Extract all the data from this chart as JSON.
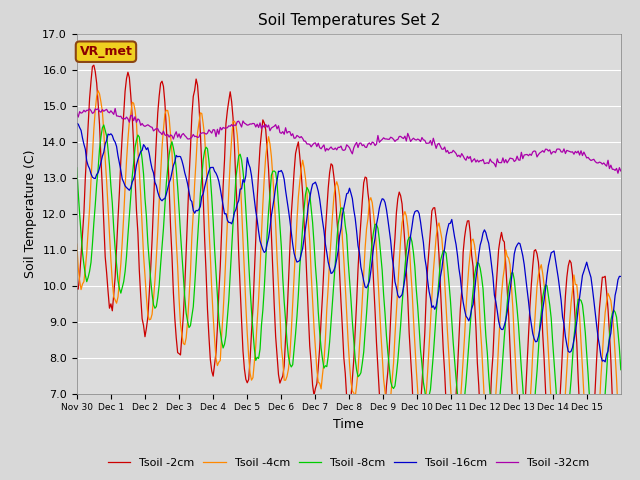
{
  "title": "Soil Temperatures Set 2",
  "xlabel": "Time",
  "ylabel": "Soil Temperature (C)",
  "ylim": [
    7.0,
    17.0
  ],
  "yticks": [
    7.0,
    8.0,
    9.0,
    10.0,
    11.0,
    12.0,
    13.0,
    14.0,
    15.0,
    16.0,
    17.0
  ],
  "colors": {
    "tsoil_2cm": "#cc0000",
    "tsoil_4cm": "#ff8800",
    "tsoil_8cm": "#00cc00",
    "tsoil_16cm": "#0000cc",
    "tsoil_32cm": "#aa00aa"
  },
  "legend_labels": [
    "Tsoil -2cm",
    "Tsoil -4cm",
    "Tsoil -8cm",
    "Tsoil -16cm",
    "Tsoil -32cm"
  ],
  "annotation": "VR_met",
  "bg_color": "#d8d8d8",
  "plot_bg_color": "#dcdcdc",
  "xtick_labels": [
    "Nov 30",
    "Dec 1",
    "Dec 2",
    "Dec 3",
    "Dec 4",
    "Dec 5",
    "Dec 6",
    "Dec 7",
    "Dec 8",
    "Dec 9",
    "Dec 10",
    "Dec 11",
    "Dec 12",
    "Dec 13",
    "Dec 14",
    "Dec 15"
  ]
}
